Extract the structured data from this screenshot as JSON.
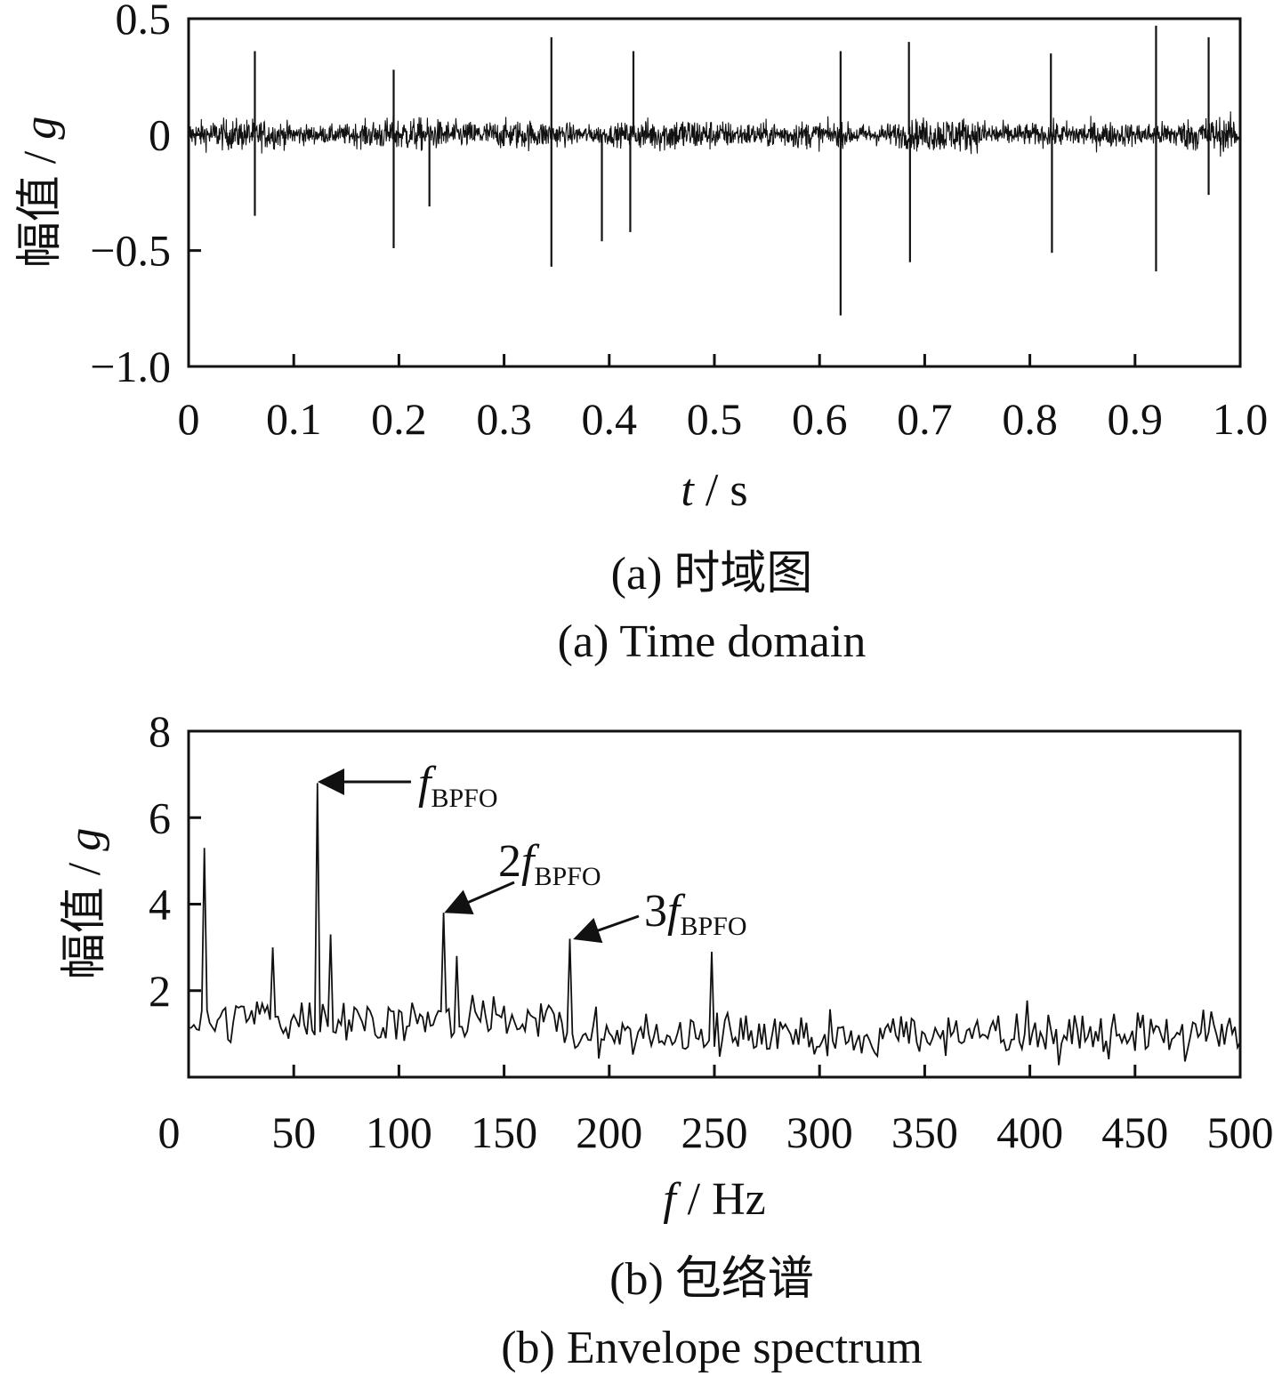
{
  "chart_data": [
    {
      "type": "line",
      "xlabel": "t / s",
      "xlabel_var": "t",
      "xlabel_unit": "/ s",
      "ylabel": "幅值 / g",
      "ylabel_text": "幅值 /",
      "ylabel_var": "g",
      "xlim": [
        0,
        1.0
      ],
      "ylim": [
        -1.0,
        0.5
      ],
      "xticks": [
        "0",
        "0.1",
        "0.2",
        "0.3",
        "0.4",
        "0.5",
        "0.6",
        "0.7",
        "0.8",
        "0.9",
        "1.0"
      ],
      "yticks": [
        "0.5",
        "0",
        "−0.5",
        "−1.0"
      ],
      "caption_cn": "(a)  时域图",
      "caption_en": "(a)  Time domain",
      "noise_amplitude": 0.12,
      "spikes": [
        {
          "x": 0.063,
          "y": 0.36
        },
        {
          "x": 0.063,
          "y": -0.35
        },
        {
          "x": 0.195,
          "y": 0.28
        },
        {
          "x": 0.195,
          "y": -0.49
        },
        {
          "x": 0.229,
          "y": -0.31
        },
        {
          "x": 0.345,
          "y": 0.42
        },
        {
          "x": 0.345,
          "y": -0.57
        },
        {
          "x": 0.393,
          "y": -0.46
        },
        {
          "x": 0.42,
          "y": -0.42
        },
        {
          "x": 0.423,
          "y": 0.36
        },
        {
          "x": 0.62,
          "y": -0.78
        },
        {
          "x": 0.62,
          "y": 0.36
        },
        {
          "x": 0.685,
          "y": 0.4
        },
        {
          "x": 0.686,
          "y": -0.55
        },
        {
          "x": 0.82,
          "y": 0.35
        },
        {
          "x": 0.821,
          "y": -0.51
        },
        {
          "x": 0.92,
          "y": 0.47
        },
        {
          "x": 0.92,
          "y": -0.59
        },
        {
          "x": 0.97,
          "y": 0.42
        },
        {
          "x": 0.97,
          "y": -0.26
        }
      ]
    },
    {
      "type": "line",
      "xlabel": "f / Hz",
      "xlabel_var": "f",
      "xlabel_unit": "/ Hz",
      "ylabel": "幅值 / g",
      "ylabel_text": "幅值 /",
      "ylabel_var": "g",
      "xlim": [
        0,
        500
      ],
      "ylim": [
        0,
        8
      ],
      "xticks": [
        "0",
        "50",
        "100",
        "150",
        "200",
        "250",
        "300",
        "350",
        "400",
        "450",
        "500"
      ],
      "yticks": [
        "8",
        "6",
        "4",
        "2"
      ],
      "caption_cn": "(b)  包络谱",
      "caption_en": "(b)  Envelope spectrum",
      "peaks": [
        {
          "x": 7,
          "y": 5.3
        },
        {
          "x": 61,
          "y": 6.8
        },
        {
          "x": 121,
          "y": 3.8
        },
        {
          "x": 181,
          "y": 3.2
        },
        {
          "x": 127,
          "y": 2.8
        },
        {
          "x": 249,
          "y": 2.9
        },
        {
          "x": 40,
          "y": 3.0
        },
        {
          "x": 67,
          "y": 3.3
        }
      ],
      "annotations": [
        {
          "prefix": "",
          "var": "f",
          "sub": "BPFO",
          "x": 61,
          "y": 6.8
        },
        {
          "prefix": "2",
          "var": "f",
          "sub": "BPFO",
          "x": 121,
          "y": 3.8
        },
        {
          "prefix": "3",
          "var": "f",
          "sub": "BPFO",
          "x": 181,
          "y": 3.2
        }
      ]
    }
  ]
}
